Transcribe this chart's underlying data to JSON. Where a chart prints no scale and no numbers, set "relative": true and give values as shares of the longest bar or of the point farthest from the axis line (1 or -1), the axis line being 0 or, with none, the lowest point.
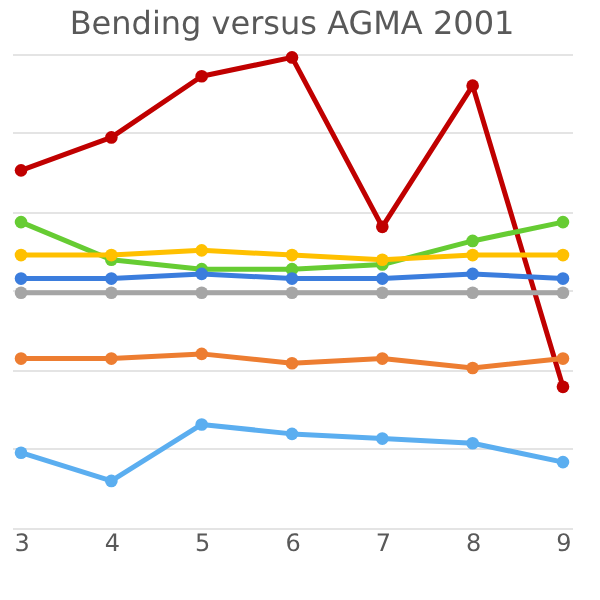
{
  "chart_data": {
    "type": "line",
    "title": "Bending versus AGMA 2001",
    "relative": true,
    "grid": "y",
    "marker": "circle",
    "categories": [
      "3",
      "4",
      "5",
      "6",
      "7",
      "8",
      "9"
    ],
    "series": [
      {
        "color": "#c00000",
        "values": [
          0.76,
          0.83,
          0.96,
          1,
          0.64,
          0.94,
          0.3
        ]
      },
      {
        "color": "#66cc33",
        "values": [
          0.65,
          0.57,
          0.55,
          0.55,
          0.56,
          0.61,
          0.65
        ]
      },
      {
        "color": "#ffc000",
        "values": [
          0.58,
          0.58,
          0.59,
          0.58,
          0.57,
          0.58,
          0.58
        ]
      },
      {
        "color": "#3b7ddd",
        "values": [
          0.53,
          0.53,
          0.54,
          0.53,
          0.53,
          0.54,
          0.53
        ]
      },
      {
        "color": "#a5a5a5",
        "values": [
          0.5,
          0.5,
          0.5,
          0.5,
          0.5,
          0.5,
          0.5
        ]
      },
      {
        "color": "#ed7d31",
        "values": [
          0.36,
          0.36,
          0.37,
          0.35,
          0.36,
          0.34,
          0.36
        ]
      },
      {
        "color": "#5baef0",
        "values": [
          0.16,
          0.1,
          0.22,
          0.2,
          0.19,
          0.18,
          0.14
        ]
      }
    ]
  }
}
